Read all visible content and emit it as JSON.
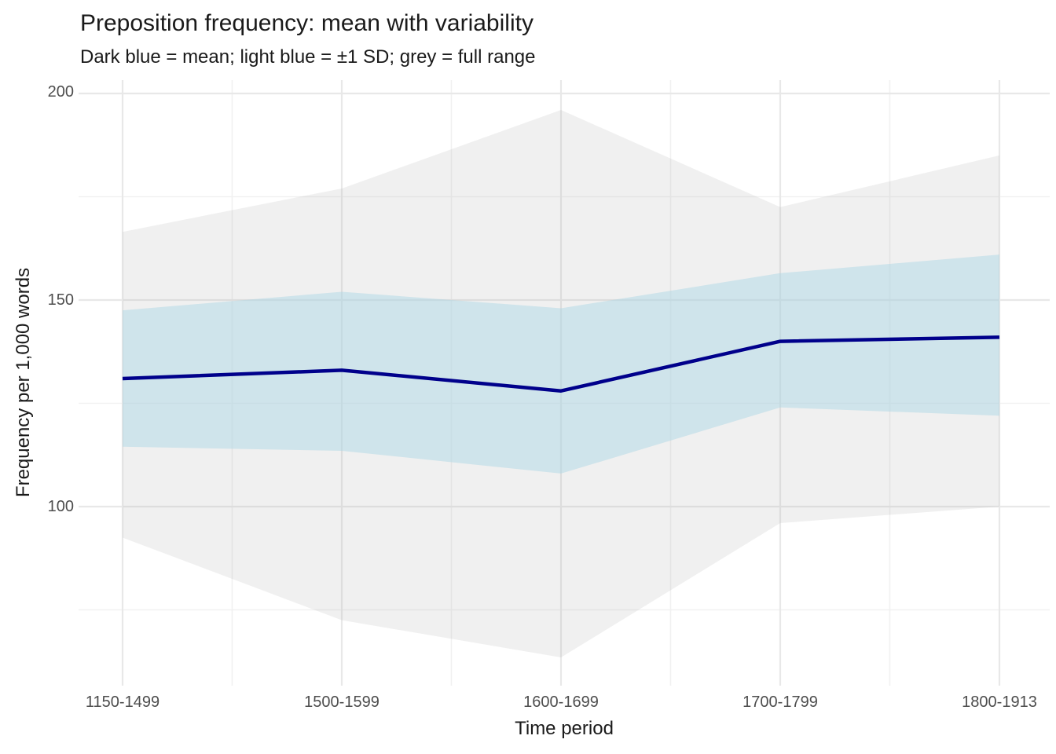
{
  "chart_data": {
    "type": "line",
    "title": "Preposition frequency: mean with variability",
    "subtitle": "Dark blue = mean; light blue = ±1 SD; grey = full range",
    "xlabel": "Time period",
    "ylabel": "Frequency per 1,000 words",
    "categories": [
      "1150-1499",
      "1500-1599",
      "1600-1699",
      "1700-1799",
      "1800-1913"
    ],
    "series": [
      {
        "name": "mean",
        "values": [
          131,
          133,
          128,
          140,
          141
        ]
      },
      {
        "name": "sd_upper",
        "values": [
          147.5,
          152,
          148,
          156.5,
          161
        ]
      },
      {
        "name": "sd_lower",
        "values": [
          114.5,
          113.5,
          108,
          124,
          122
        ]
      },
      {
        "name": "range_max",
        "values": [
          166.5,
          177,
          196,
          172.5,
          185
        ]
      },
      {
        "name": "range_min",
        "values": [
          92.5,
          72.5,
          63.5,
          96,
          100
        ]
      }
    ],
    "y_ticks": [
      100,
      150,
      200
    ],
    "y_tick_labels": [
      "200",
      "150",
      "100"
    ],
    "y_minor_ticks": [
      75,
      125,
      175
    ],
    "ylim": [
      57,
      203
    ],
    "grid": "major+minor, no axis lines, no tick marks (theme_minimal)",
    "legend": "none (bands explained in subtitle)",
    "colors": {
      "mean": "#00008B",
      "sd_band": "rgba(173,216,230,0.5)",
      "range_band": "rgba(179,179,179,0.2)",
      "grid_major": "#E8E8E8",
      "grid_minor": "#F1F1F1",
      "tick_text": "#4D4D4D",
      "text": "#1A1A1A"
    }
  }
}
